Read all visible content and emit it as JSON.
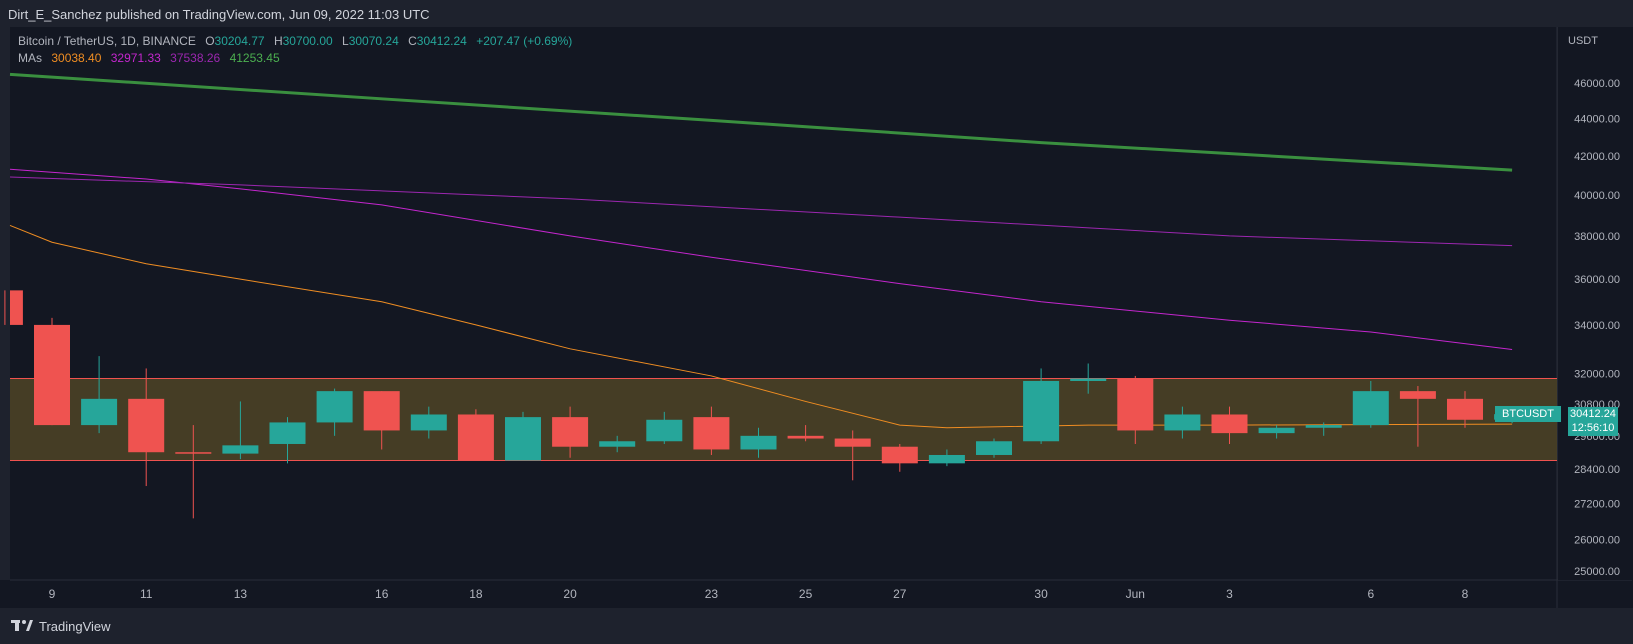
{
  "header": {
    "published_text": "Dirt_E_Sanchez published on TradingView.com, Jun 09, 2022 11:03 UTC"
  },
  "legend": {
    "symbol": "Bitcoin / TetherUS, 1D, BINANCE",
    "o_label": "O",
    "o_value": "30204.77",
    "h_label": "H",
    "h_value": "30700.00",
    "l_label": "L",
    "l_value": "30070.24",
    "c_label": "C",
    "c_value": "30412.24",
    "change": "+207.47 (+0.69%)",
    "mas_label": "MAs",
    "ma_values": [
      "30038.40",
      "32971.33",
      "37538.26",
      "41253.45"
    ]
  },
  "price_axis": {
    "currency": "USDT",
    "current_price": "30412.24",
    "countdown": "12:56:10",
    "symbol_tag": "BTCUSDT"
  },
  "footer": {
    "brand": "TradingView"
  },
  "colors": {
    "background": "#131722",
    "up": "#26a69a",
    "down": "#ef5350",
    "zone_fill": "#4a4126",
    "zone_border": "#f0524f",
    "ma1": "#ef8d22",
    "ma2": "#c426ce",
    "ma3": "#9c27b0",
    "ma4": "#3a8f3f"
  },
  "chart_data": {
    "type": "candlestick",
    "y_scale": "log",
    "ylim": [
      24500,
      48500
    ],
    "y_ticks": [
      25000,
      26000,
      27200,
      28400,
      29600,
      30800,
      32000,
      34000,
      36000,
      38000,
      40000,
      42000,
      44000,
      46000
    ],
    "y_tick_labels": [
      "25000.00",
      "26000.00",
      "27200.00",
      "28400.00",
      "29600.00",
      "30800.00",
      "32000.00",
      "34000.00",
      "36000.00",
      "38000.00",
      "40000.00",
      "42000.00",
      "44000.00",
      "46000.00"
    ],
    "x_labels": [
      {
        "date": "2022-05-09",
        "label": "9"
      },
      {
        "date": "2022-05-11",
        "label": "11"
      },
      {
        "date": "2022-05-13",
        "label": "13"
      },
      {
        "date": "2022-05-16",
        "label": "16"
      },
      {
        "date": "2022-05-18",
        "label": "18"
      },
      {
        "date": "2022-05-20",
        "label": "20"
      },
      {
        "date": "2022-05-23",
        "label": "23"
      },
      {
        "date": "2022-05-25",
        "label": "25"
      },
      {
        "date": "2022-05-27",
        "label": "27"
      },
      {
        "date": "2022-05-30",
        "label": "30"
      },
      {
        "date": "2022-06-01",
        "label": "Jun"
      },
      {
        "date": "2022-06-03",
        "label": "3"
      },
      {
        "date": "2022-06-06",
        "label": "6"
      },
      {
        "date": "2022-06-08",
        "label": "8"
      }
    ],
    "candles": [
      {
        "date": "2022-05-08",
        "o": 35500,
        "h": 35500,
        "l": 34000,
        "c": 34000
      },
      {
        "date": "2022-05-09",
        "o": 34000,
        "h": 34300,
        "l": 30000,
        "c": 30000
      },
      {
        "date": "2022-05-10",
        "o": 30000,
        "h": 32700,
        "l": 29700,
        "c": 31000
      },
      {
        "date": "2022-05-11",
        "o": 31000,
        "h": 32200,
        "l": 27800,
        "c": 29000
      },
      {
        "date": "2022-05-12",
        "o": 29000,
        "h": 30000,
        "l": 26700,
        "c": 28950
      },
      {
        "date": "2022-05-13",
        "o": 28950,
        "h": 30900,
        "l": 28750,
        "c": 29250
      },
      {
        "date": "2022-05-14",
        "o": 29300,
        "h": 30300,
        "l": 28600,
        "c": 30100
      },
      {
        "date": "2022-05-15",
        "o": 30100,
        "h": 31400,
        "l": 29600,
        "c": 31300
      },
      {
        "date": "2022-05-16",
        "o": 31300,
        "h": 31300,
        "l": 29100,
        "c": 29800
      },
      {
        "date": "2022-05-17",
        "o": 29800,
        "h": 30700,
        "l": 29500,
        "c": 30400
      },
      {
        "date": "2022-05-18",
        "o": 30400,
        "h": 30600,
        "l": 28700,
        "c": 28700
      },
      {
        "date": "2022-05-19",
        "o": 28700,
        "h": 30500,
        "l": 28700,
        "c": 30300
      },
      {
        "date": "2022-05-20",
        "o": 30300,
        "h": 30700,
        "l": 28800,
        "c": 29200
      },
      {
        "date": "2022-05-21",
        "o": 29200,
        "h": 29600,
        "l": 29000,
        "c": 29400
      },
      {
        "date": "2022-05-22",
        "o": 29400,
        "h": 30500,
        "l": 29300,
        "c": 30200
      },
      {
        "date": "2022-05-23",
        "o": 30300,
        "h": 30700,
        "l": 28900,
        "c": 29100
      },
      {
        "date": "2022-05-24",
        "o": 29100,
        "h": 29900,
        "l": 28800,
        "c": 29600
      },
      {
        "date": "2022-05-25",
        "o": 29600,
        "h": 30000,
        "l": 29400,
        "c": 29500
      },
      {
        "date": "2022-05-26",
        "o": 29500,
        "h": 29800,
        "l": 28000,
        "c": 29200
      },
      {
        "date": "2022-05-27",
        "o": 29200,
        "h": 29300,
        "l": 28300,
        "c": 28600
      },
      {
        "date": "2022-05-28",
        "o": 28600,
        "h": 29100,
        "l": 28500,
        "c": 28900
      },
      {
        "date": "2022-05-29",
        "o": 28900,
        "h": 29500,
        "l": 28800,
        "c": 29400
      },
      {
        "date": "2022-05-30",
        "o": 29400,
        "h": 32200,
        "l": 29300,
        "c": 31700
      },
      {
        "date": "2022-05-31",
        "o": 31700,
        "h": 32400,
        "l": 31200,
        "c": 31800
      },
      {
        "date": "2022-06-01",
        "o": 31800,
        "h": 31900,
        "l": 29300,
        "c": 29800
      },
      {
        "date": "2022-06-02",
        "o": 29800,
        "h": 30700,
        "l": 29500,
        "c": 30400
      },
      {
        "date": "2022-06-03",
        "o": 30400,
        "h": 30700,
        "l": 29300,
        "c": 29700
      },
      {
        "date": "2022-06-04",
        "o": 29700,
        "h": 30000,
        "l": 29500,
        "c": 29900
      },
      {
        "date": "2022-06-05",
        "o": 29900,
        "h": 30100,
        "l": 29600,
        "c": 30000
      },
      {
        "date": "2022-06-06",
        "o": 30000,
        "h": 31700,
        "l": 29900,
        "c": 31300
      },
      {
        "date": "2022-06-07",
        "o": 31300,
        "h": 31500,
        "l": 29200,
        "c": 31000
      },
      {
        "date": "2022-06-08",
        "o": 31000,
        "h": 31300,
        "l": 29900,
        "c": 30200
      },
      {
        "date": "2022-06-09",
        "o": 30204.77,
        "h": 30700,
        "l": 30070.24,
        "c": 30412.24
      }
    ],
    "moving_averages": [
      {
        "color": "#ef8d22",
        "width": 1,
        "points": [
          [
            "2022-05-08",
            38500
          ],
          [
            "2022-05-09",
            37700
          ],
          [
            "2022-05-11",
            36700
          ],
          [
            "2022-05-13",
            36000
          ],
          [
            "2022-05-16",
            35000
          ],
          [
            "2022-05-18",
            34000
          ],
          [
            "2022-05-20",
            33000
          ],
          [
            "2022-05-23",
            31900
          ],
          [
            "2022-05-25",
            30900
          ],
          [
            "2022-05-27",
            30000
          ],
          [
            "2022-05-28",
            29900
          ],
          [
            "2022-05-31",
            30000
          ],
          [
            "2022-06-03",
            30000
          ],
          [
            "2022-06-09",
            30038.4
          ]
        ]
      },
      {
        "color": "#c426ce",
        "width": 1,
        "points": [
          [
            "2022-05-08",
            41300
          ],
          [
            "2022-05-11",
            40800
          ],
          [
            "2022-05-13",
            40300
          ],
          [
            "2022-05-16",
            39500
          ],
          [
            "2022-05-20",
            38000
          ],
          [
            "2022-05-23",
            37000
          ],
          [
            "2022-05-27",
            35800
          ],
          [
            "2022-05-30",
            35000
          ],
          [
            "2022-06-03",
            34200
          ],
          [
            "2022-06-06",
            33700
          ],
          [
            "2022-06-09",
            32971.33
          ]
        ]
      },
      {
        "color": "#9c27b0",
        "width": 1,
        "points": [
          [
            "2022-05-08",
            40900
          ],
          [
            "2022-05-13",
            40500
          ],
          [
            "2022-05-20",
            39800
          ],
          [
            "2022-05-27",
            38900
          ],
          [
            "2022-06-03",
            38000
          ],
          [
            "2022-06-09",
            37538.26
          ]
        ]
      },
      {
        "color": "#3a8f3f",
        "width": 3,
        "points": [
          [
            "2022-05-08",
            46500
          ],
          [
            "2022-05-16",
            45100
          ],
          [
            "2022-05-23",
            43900
          ],
          [
            "2022-05-30",
            42700
          ],
          [
            "2022-06-09",
            41253.45
          ]
        ]
      }
    ],
    "zones": [
      {
        "from_date": "2022-05-08",
        "to_date": "2022-06-09",
        "top": 31800,
        "bottom": 28700
      }
    ]
  }
}
